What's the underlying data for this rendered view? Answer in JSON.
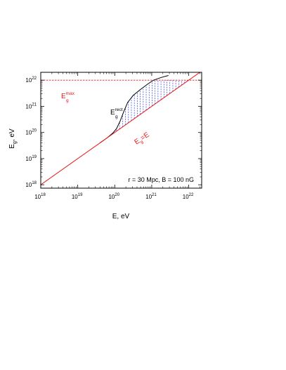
{
  "chart_data": {
    "type": "line",
    "xlabel": "E, eV",
    "ylabel": "E_g, eV",
    "xscale": "log",
    "yscale": "log",
    "xlim_exp": [
      18,
      22.35
    ],
    "ylim_exp": [
      17.87,
      22.3
    ],
    "x_ticks": [
      {
        "base": "10",
        "exp": "18",
        "value": 18
      },
      {
        "base": "10",
        "exp": "19",
        "value": 19
      },
      {
        "base": "10",
        "exp": "20",
        "value": 20
      },
      {
        "base": "10",
        "exp": "21",
        "value": 21
      },
      {
        "base": "10",
        "exp": "22",
        "value": 22
      }
    ],
    "y_ticks": [
      {
        "base": "10",
        "exp": "18",
        "value": 18
      },
      {
        "base": "10",
        "exp": "19",
        "value": 19
      },
      {
        "base": "10",
        "exp": "20",
        "value": 20
      },
      {
        "base": "10",
        "exp": "21",
        "value": 21
      },
      {
        "base": "10",
        "exp": "22",
        "value": 22
      }
    ],
    "series": [
      {
        "label_main": "E",
        "label_sub": "g",
        "label_sup": "max",
        "color": "#e8191b",
        "style": "dashed",
        "points": [
          [
            18,
            22
          ],
          [
            22.35,
            22
          ]
        ]
      },
      {
        "label_main": "E",
        "label_sub": "g",
        "label_sup": "rect",
        "color": "#000000",
        "style": "solid",
        "points": [
          [
            19.6,
            19.6
          ],
          [
            19.8,
            19.8
          ],
          [
            19.95,
            19.98
          ],
          [
            20.05,
            20.15
          ],
          [
            20.15,
            20.45
          ],
          [
            20.25,
            20.82
          ],
          [
            20.35,
            21.15
          ],
          [
            20.5,
            21.42
          ],
          [
            20.7,
            21.65
          ],
          [
            20.9,
            21.86
          ],
          [
            21.05,
            22.0
          ],
          [
            21.25,
            22.1
          ],
          [
            21.45,
            22.18
          ]
        ]
      },
      {
        "label_main": "E",
        "label_sub": "g",
        "label_tail": "=E",
        "color": "#e8191b",
        "style": "solid",
        "points": [
          [
            18,
            18
          ],
          [
            22.35,
            22.35
          ]
        ]
      }
    ],
    "hatch": {
      "color": "#3344dd",
      "x_exp": [
        20.05,
        20.13,
        20.21,
        20.29,
        20.37,
        20.45,
        20.53,
        20.61,
        20.69,
        20.77,
        20.85,
        20.93,
        21.01,
        21.09,
        21.17,
        21.25,
        21.33,
        21.41,
        21.49,
        21.57,
        21.65,
        21.73,
        21.81,
        21.89,
        21.97
      ]
    },
    "annotation": "r = 30 Mpc, B = 100 nG"
  }
}
